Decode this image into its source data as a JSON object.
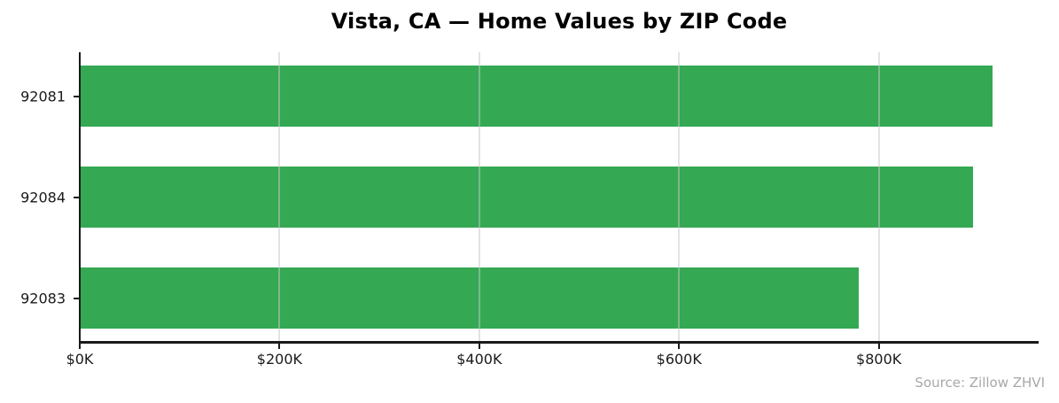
{
  "chart_data": {
    "type": "bar",
    "orientation": "horizontal",
    "title": "Vista, CA — Home Values by ZIP Code",
    "categories": [
      "92081",
      "92084",
      "92083"
    ],
    "values": [
      914000,
      894000,
      780000
    ],
    "values_unit": "USD",
    "xlabel": "",
    "ylabel": "",
    "xlim": [
      0,
      960000
    ],
    "xticks": [
      0,
      200000,
      400000,
      600000,
      800000
    ],
    "xtick_labels": [
      "$0K",
      "$200K",
      "$400K",
      "$600K",
      "$800K"
    ],
    "grid": "vertical",
    "grid_above_bars": true,
    "legend": "none",
    "bar_color": "#34a853",
    "source": "Source: Zillow ZHVI"
  },
  "colors": {
    "bar": "#34a853",
    "axis": "#1a1a1a",
    "grid": "rgba(200,200,200,0.5)",
    "title": "#000000",
    "tick_label": "#1a1a1a",
    "source_text": "#a8a8a8",
    "background": "#ffffff"
  }
}
